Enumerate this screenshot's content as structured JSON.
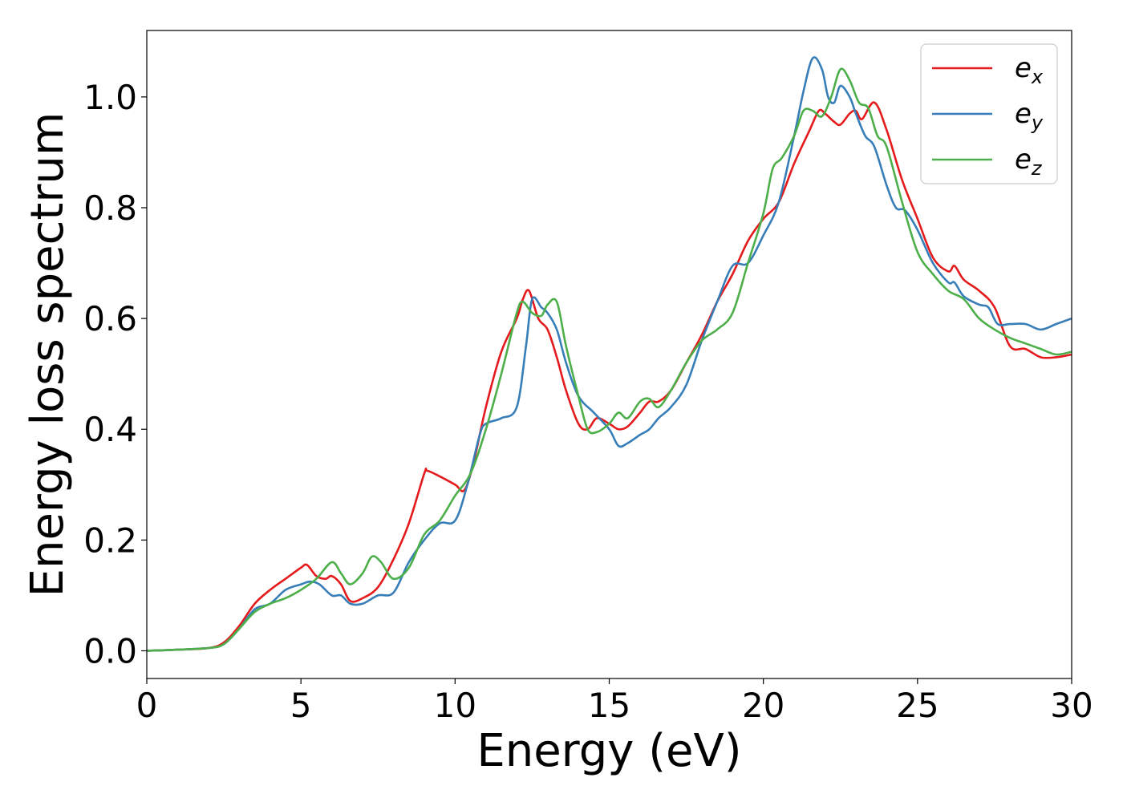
{
  "chart_data": {
    "type": "line",
    "xlabel": "Energy (eV)",
    "ylabel": "Energy loss spectrum",
    "xlim": [
      0,
      30
    ],
    "ylim": [
      -0.05,
      1.12
    ],
    "xticks": [
      0,
      5,
      10,
      15,
      20,
      25,
      30
    ],
    "yticks": [
      0.0,
      0.2,
      0.4,
      0.6,
      0.8,
      1.0
    ],
    "xtick_labels": [
      "0",
      "5",
      "10",
      "15",
      "20",
      "25",
      "30"
    ],
    "ytick_labels": [
      "0.0",
      "0.2",
      "0.4",
      "0.6",
      "0.8",
      "1.0"
    ],
    "grid": false,
    "legend_position": "top-right",
    "series": [
      {
        "name": "e_x",
        "label_base": "e",
        "label_sub": "x",
        "color": "#e41a1c",
        "x": [
          0,
          1,
          2,
          2.5,
          3,
          3.5,
          4,
          4.5,
          5,
          5.2,
          5.5,
          5.8,
          6,
          6.3,
          6.6,
          7,
          7.5,
          8,
          8.5,
          9,
          9.1,
          9.5,
          10,
          10.3,
          10.6,
          11,
          11.5,
          12,
          12.2,
          12.4,
          12.7,
          13,
          13.3,
          13.6,
          14,
          14.3,
          14.6,
          15,
          15.3,
          15.6,
          16,
          16.3,
          16.6,
          17,
          17.5,
          18,
          18.5,
          19,
          19.5,
          20,
          20.5,
          21,
          21.5,
          21.8,
          22,
          22.3,
          22.5,
          22.8,
          23,
          23.2,
          23.6,
          24,
          24.5,
          25,
          25.5,
          26,
          26.2,
          26.5,
          27,
          27.5,
          28,
          28.5,
          29,
          29.5,
          30
        ],
        "y": [
          0,
          0.002,
          0.005,
          0.015,
          0.045,
          0.085,
          0.11,
          0.13,
          0.15,
          0.155,
          0.135,
          0.13,
          0.135,
          0.12,
          0.09,
          0.095,
          0.115,
          0.165,
          0.23,
          0.32,
          0.325,
          0.315,
          0.3,
          0.29,
          0.34,
          0.44,
          0.54,
          0.6,
          0.635,
          0.65,
          0.6,
          0.58,
          0.53,
          0.47,
          0.41,
          0.4,
          0.42,
          0.41,
          0.4,
          0.405,
          0.43,
          0.45,
          0.45,
          0.47,
          0.52,
          0.57,
          0.63,
          0.68,
          0.74,
          0.78,
          0.81,
          0.88,
          0.94,
          0.975,
          0.97,
          0.955,
          0.95,
          0.97,
          0.975,
          0.96,
          0.99,
          0.94,
          0.85,
          0.78,
          0.71,
          0.685,
          0.695,
          0.67,
          0.65,
          0.62,
          0.55,
          0.545,
          0.53,
          0.53,
          0.535
        ]
      },
      {
        "name": "e_y",
        "label_base": "e",
        "label_sub": "y",
        "color": "#377eb8",
        "x": [
          0,
          1,
          2,
          2.5,
          3,
          3.5,
          4,
          4.5,
          5,
          5.3,
          5.6,
          6,
          6.3,
          6.6,
          7,
          7.5,
          8,
          8.5,
          9,
          9.5,
          10,
          10.4,
          10.8,
          11,
          11.5,
          12,
          12.3,
          12.5,
          12.8,
          13,
          13.3,
          13.6,
          14,
          14.5,
          15,
          15.3,
          15.6,
          16,
          16.3,
          16.6,
          17,
          17.5,
          18,
          18.5,
          19,
          19.5,
          20,
          20.5,
          21,
          21.3,
          21.6,
          21.9,
          22.1,
          22.3,
          22.5,
          22.8,
          23,
          23.3,
          23.6,
          24,
          24.3,
          24.6,
          25,
          25.5,
          26,
          26.2,
          26.5,
          27,
          27.3,
          27.6,
          28,
          28.5,
          29,
          29.5,
          30
        ],
        "y": [
          0,
          0.002,
          0.005,
          0.012,
          0.04,
          0.075,
          0.085,
          0.11,
          0.12,
          0.125,
          0.12,
          0.1,
          0.1,
          0.085,
          0.085,
          0.1,
          0.105,
          0.16,
          0.2,
          0.23,
          0.235,
          0.3,
          0.39,
          0.41,
          0.42,
          0.44,
          0.55,
          0.635,
          0.62,
          0.61,
          0.58,
          0.52,
          0.46,
          0.43,
          0.4,
          0.37,
          0.375,
          0.39,
          0.4,
          0.42,
          0.44,
          0.48,
          0.56,
          0.63,
          0.695,
          0.7,
          0.75,
          0.81,
          0.93,
          1.01,
          1.07,
          1.05,
          1.0,
          0.99,
          1.02,
          1.0,
          0.97,
          0.93,
          0.91,
          0.84,
          0.8,
          0.795,
          0.76,
          0.7,
          0.665,
          0.665,
          0.64,
          0.625,
          0.62,
          0.59,
          0.59,
          0.59,
          0.58,
          0.59,
          0.6
        ]
      },
      {
        "name": "e_z",
        "label_base": "e",
        "label_sub": "z",
        "color": "#4daf4a",
        "x": [
          0,
          1,
          2,
          2.5,
          3,
          3.5,
          4,
          4.5,
          5,
          5.5,
          6,
          6.3,
          6.6,
          7,
          7.3,
          7.6,
          8,
          8.5,
          9,
          9.5,
          10,
          10.5,
          11,
          11.5,
          12,
          12.2,
          12.5,
          12.8,
          13,
          13.3,
          13.6,
          14,
          14.3,
          14.6,
          15,
          15.3,
          15.6,
          16,
          16.3,
          16.6,
          17,
          17.5,
          18,
          18.5,
          19,
          19.5,
          20,
          20.3,
          20.6,
          21,
          21.3,
          21.6,
          21.9,
          22.2,
          22.5,
          22.8,
          23.1,
          23.4,
          23.7,
          24,
          24.5,
          25,
          25.5,
          26,
          26.5,
          27,
          27.5,
          28,
          28.5,
          29,
          29.5,
          30
        ],
        "y": [
          0,
          0.002,
          0.005,
          0.012,
          0.04,
          0.07,
          0.085,
          0.095,
          0.11,
          0.13,
          0.16,
          0.14,
          0.12,
          0.14,
          0.17,
          0.16,
          0.13,
          0.15,
          0.21,
          0.235,
          0.28,
          0.32,
          0.4,
          0.5,
          0.61,
          0.63,
          0.61,
          0.605,
          0.625,
          0.63,
          0.55,
          0.46,
          0.4,
          0.395,
          0.41,
          0.43,
          0.42,
          0.45,
          0.455,
          0.44,
          0.47,
          0.52,
          0.56,
          0.58,
          0.61,
          0.7,
          0.79,
          0.87,
          0.89,
          0.93,
          0.975,
          0.975,
          0.965,
          1.0,
          1.05,
          1.03,
          0.99,
          0.98,
          0.93,
          0.91,
          0.81,
          0.72,
          0.68,
          0.65,
          0.635,
          0.6,
          0.58,
          0.565,
          0.555,
          0.545,
          0.535,
          0.54
        ]
      }
    ]
  }
}
